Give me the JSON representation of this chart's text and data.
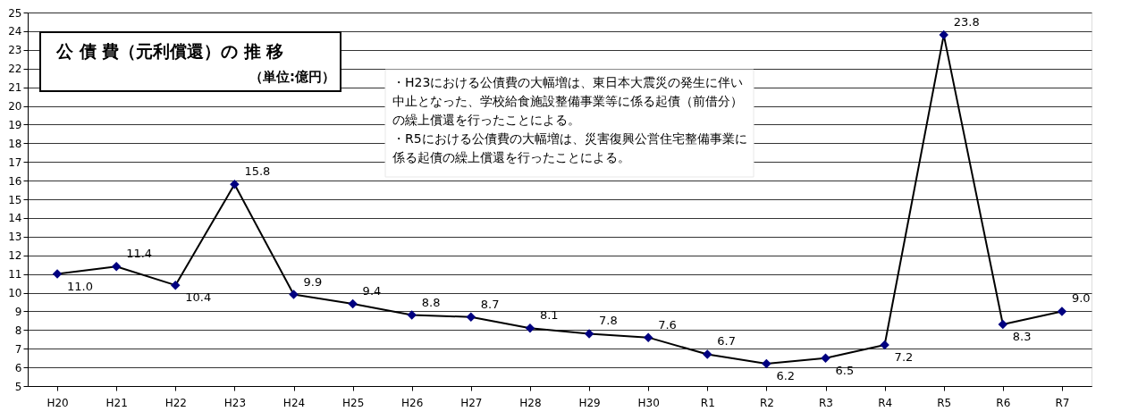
{
  "chart_data": {
    "type": "line",
    "title": "公 債 費（元利償還）の 推 移",
    "subtitle": "（単位:億円）",
    "categories": [
      "H20",
      "H21",
      "H22",
      "H23",
      "H24",
      "H25",
      "H26",
      "H27",
      "H28",
      "H29",
      "H30",
      "R1",
      "R2",
      "R3",
      "R4",
      "R5",
      "R6",
      "R7"
    ],
    "series": [
      {
        "color": "#000080",
        "values": [
          11.0,
          11.4,
          10.4,
          15.8,
          9.9,
          9.4,
          8.8,
          8.7,
          8.1,
          7.8,
          7.6,
          6.7,
          6.2,
          6.5,
          7.2,
          23.8,
          8.3,
          9.0
        ]
      }
    ],
    "ylim": [
      5,
      25
    ],
    "yticks": [
      5,
      6,
      7,
      8,
      9,
      10,
      11,
      12,
      13,
      14,
      15,
      16,
      17,
      18,
      19,
      20,
      21,
      22,
      23,
      24,
      25
    ],
    "value_labels": [
      "11.0",
      "11.4",
      "10.4",
      "15.8",
      "9.9",
      "9.4",
      "8.8",
      "8.7",
      "8.1",
      "7.8",
      "7.6",
      "6.7",
      "6.2",
      "6.5",
      "7.2",
      "23.8",
      "8.3",
      "9.0"
    ],
    "grid": "y",
    "marker": "diamond",
    "line_style": "solid",
    "annotations": [
      "・H23における公債費の大幅増は、東日本大震災の発生に伴い中止となった、学校給食施設整備事業等に係る起債（前借分）の繰上償還を行ったことによる。",
      "・R5における公債費の大幅増は、災害復興公営住宅整備事業に係る起債の繰上償還を行ったことによる。"
    ]
  }
}
